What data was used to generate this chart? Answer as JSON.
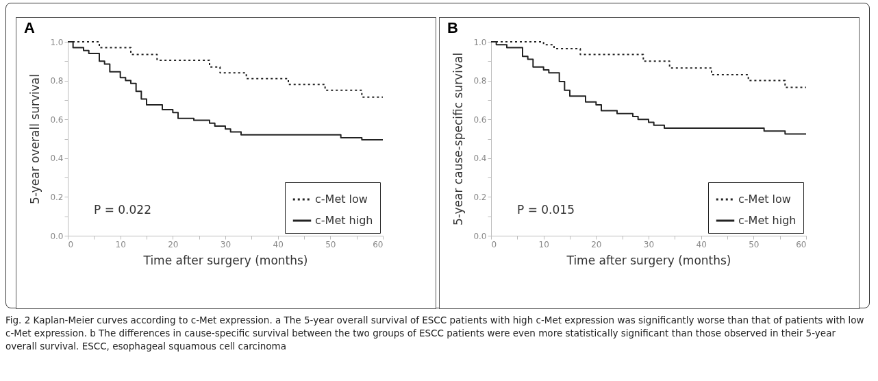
{
  "chart_data": [
    {
      "type": "step",
      "title": "A",
      "xlabel": "Time after surgery (months)",
      "ylabel": "5-year overall survival",
      "xlim": [
        0,
        60
      ],
      "ylim": [
        0,
        1
      ],
      "xticks": [
        0,
        {
          "value": 5,
          "label": null
        },
        10,
        {
          "value": 15,
          "label": null
        },
        20,
        {
          "value": 25,
          "label": null
        },
        30,
        {
          "value": 35,
          "label": null
        },
        40,
        {
          "value": 45,
          "label": null
        },
        50,
        {
          "value": 55,
          "label": null
        },
        60
      ],
      "yticks": [
        {
          "value": 0,
          "label": "0.0"
        },
        {
          "value": 0.1,
          "label": null
        },
        0.2,
        {
          "value": 0.3,
          "label": null
        },
        0.4,
        {
          "value": 0.5,
          "label": null
        },
        0.6,
        {
          "value": 0.7,
          "label": null
        },
        0.8,
        {
          "value": 0.9,
          "label": null
        },
        {
          "value": 1,
          "label": "1.0"
        }
      ],
      "grid": false,
      "legend": "bottom right",
      "annotations": [
        "P = 0.022"
      ],
      "series": [
        {
          "name": "c-Met low",
          "color": "#222222",
          "line_style": "dotted",
          "x": [
            0,
            6,
            12,
            17,
            27,
            29,
            34,
            42,
            49,
            56,
            60
          ],
          "values": [
            1,
            0.97,
            0.935,
            0.905,
            0.87,
            0.84,
            0.81,
            0.78,
            0.75,
            0.715,
            0.715
          ]
        },
        {
          "name": "c-Met high",
          "color": "#222222",
          "line_style": "solid",
          "x": [
            0,
            1,
            3,
            4,
            6,
            7,
            8,
            10,
            11,
            12,
            13,
            14,
            15,
            18,
            20,
            21,
            24,
            27,
            28,
            30,
            31,
            33,
            52,
            56,
            60
          ],
          "values": [
            1,
            0.97,
            0.955,
            0.94,
            0.9,
            0.885,
            0.845,
            0.815,
            0.8,
            0.785,
            0.745,
            0.705,
            0.675,
            0.65,
            0.635,
            0.605,
            0.595,
            0.58,
            0.565,
            0.55,
            0.535,
            0.52,
            0.505,
            0.495,
            0.495
          ]
        }
      ]
    },
    {
      "type": "step",
      "title": "B",
      "xlabel": "Time after surgery (months)",
      "ylabel": "5-year cause-specific survival",
      "xlim": [
        0,
        60
      ],
      "ylim": [
        0,
        1
      ],
      "xticks": [
        0,
        {
          "value": 5,
          "label": null
        },
        10,
        {
          "value": 15,
          "label": null
        },
        20,
        {
          "value": 25,
          "label": null
        },
        30,
        {
          "value": 35,
          "label": null
        },
        40,
        {
          "value": 45,
          "label": null
        },
        50,
        {
          "value": 55,
          "label": null
        },
        60
      ],
      "yticks": [
        {
          "value": 0,
          "label": "0.0"
        },
        {
          "value": 0.1,
          "label": null
        },
        0.2,
        {
          "value": 0.3,
          "label": null
        },
        0.4,
        {
          "value": 0.5,
          "label": null
        },
        0.6,
        {
          "value": 0.7,
          "label": null
        },
        0.8,
        {
          "value": 0.9,
          "label": null
        },
        {
          "value": 1,
          "label": "1.0"
        }
      ],
      "grid": false,
      "legend": "bottom right",
      "annotations": [
        "P = 0.015",
        "Fig. 2 Kaplan-Meier curves according to c-Met expression. a The 5-year overall survival of ESCC patients with high c-Met expression was significantly worse than that of patients with low c-Met expression. b The differences in cause-specific survival between the two groups of ESCC patients were even more statistically significant than those observed in their 5-year overall survival. ESCC, esophageal squamous cell carcinoma"
      ],
      "series": [
        {
          "name": "c-Met low",
          "color": "#222222",
          "line_style": "dotted",
          "x": [
            0,
            10,
            12,
            17,
            29,
            34,
            42,
            49,
            56,
            60
          ],
          "values": [
            1,
            0.985,
            0.965,
            0.935,
            0.9,
            0.865,
            0.83,
            0.8,
            0.765,
            0.765
          ]
        },
        {
          "name": "c-Met high",
          "color": "#222222",
          "line_style": "solid",
          "x": [
            0,
            1,
            3,
            6,
            7,
            8,
            10,
            11,
            13,
            14,
            15,
            18,
            20,
            21,
            24,
            27,
            28,
            30,
            31,
            33,
            52,
            56,
            60
          ],
          "values": [
            1,
            0.985,
            0.97,
            0.925,
            0.91,
            0.87,
            0.855,
            0.84,
            0.795,
            0.75,
            0.72,
            0.69,
            0.675,
            0.645,
            0.63,
            0.615,
            0.6,
            0.585,
            0.57,
            0.555,
            0.54,
            0.525,
            0.525
          ]
        }
      ]
    }
  ]
}
